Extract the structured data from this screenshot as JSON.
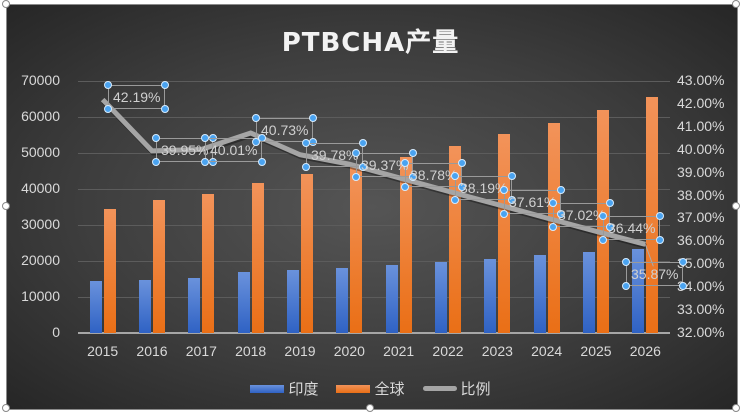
{
  "chart_data": {
    "type": "bar",
    "title": "PTBCHA产量",
    "categories": [
      "2015",
      "2016",
      "2017",
      "2018",
      "2019",
      "2020",
      "2021",
      "2022",
      "2023",
      "2024",
      "2025",
      "2026"
    ],
    "series": [
      {
        "name": "印度",
        "type": "bar",
        "axis": "left",
        "color": "#4472C4",
        "values": [
          14400,
          14700,
          15300,
          17000,
          17500,
          18100,
          18900,
          19700,
          20600,
          21700,
          22500,
          23300
        ]
      },
      {
        "name": "全球",
        "type": "bar",
        "axis": "left",
        "color": "#ED7D31",
        "values": [
          34500,
          37000,
          38700,
          41700,
          44200,
          46400,
          48900,
          52000,
          55300,
          58300,
          62000,
          65600
        ]
      },
      {
        "name": "比例",
        "type": "line",
        "axis": "right",
        "color": "#A5A5A5",
        "values": [
          42.19,
          39.95,
          40.01,
          40.73,
          39.78,
          39.37,
          38.78,
          38.19,
          37.61,
          37.02,
          36.44,
          35.87
        ],
        "labels": [
          "42.19%",
          "39.95%",
          "40.01%",
          "40.73%",
          "39.78%",
          "39.37%",
          "38.78%",
          "38.19%",
          "37.61%",
          "37.02%",
          "36.44%",
          "35.87%"
        ]
      }
    ],
    "xlabel": "",
    "ylabel": "",
    "ylim": [
      0,
      70000
    ],
    "y_ticks": [
      "0",
      "10000",
      "20000",
      "30000",
      "40000",
      "50000",
      "60000",
      "70000"
    ],
    "y2lim": [
      32,
      43
    ],
    "y2_ticks": [
      "32.00%",
      "33.00%",
      "34.00%",
      "35.00%",
      "36.00%",
      "37.00%",
      "38.00%",
      "39.00%",
      "40.00%",
      "41.00%",
      "42.00%",
      "43.00%"
    ],
    "grid": true,
    "legend_position": "bottom"
  },
  "legend": [
    {
      "label": "印度",
      "color": "#4472C4",
      "kind": "bar"
    },
    {
      "label": "全球",
      "color": "#ED7D31",
      "kind": "bar"
    },
    {
      "label": "比例",
      "color": "#A5A5A5",
      "kind": "line"
    }
  ]
}
